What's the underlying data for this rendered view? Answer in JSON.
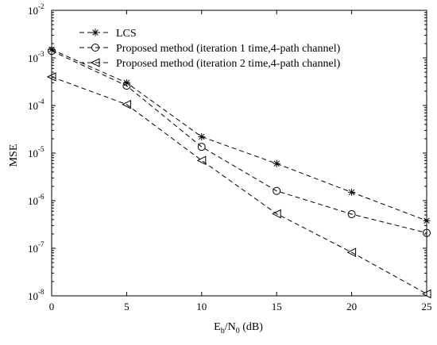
{
  "chart_data": {
    "type": "line",
    "title": "",
    "xlabel": {
      "main": "E",
      "sub1": "b",
      "mid": "/N",
      "sub2": "0",
      "unit": " (dB)"
    },
    "ylabel": "MSE",
    "x": [
      0,
      5,
      10,
      15,
      20,
      25
    ],
    "xlim": [
      0,
      25
    ],
    "ylim": [
      1e-08,
      0.01
    ],
    "yscale": "log",
    "xticks": [
      "0",
      "5",
      "10",
      "15",
      "20",
      "25"
    ],
    "yticks": [
      {
        "exp": -8,
        "base": "10",
        "power": "-8"
      },
      {
        "exp": -7,
        "base": "10",
        "power": "-7"
      },
      {
        "exp": -6,
        "base": "10",
        "power": "-6"
      },
      {
        "exp": -5,
        "base": "10",
        "power": "-5"
      },
      {
        "exp": -4,
        "base": "10",
        "power": "-4"
      },
      {
        "exp": -3,
        "base": "10",
        "power": "-3"
      },
      {
        "exp": -2,
        "base": "10",
        "power": "-2"
      }
    ],
    "grid": false,
    "legend_position": "top-right",
    "series": [
      {
        "name": "LCS",
        "marker": "asterisk",
        "linestyle": "dashed",
        "values": [
          0.0015,
          0.0003,
          2.2e-05,
          6e-06,
          1.5e-06,
          3.8e-07
        ]
      },
      {
        "name": "Proposed method (iteration 1 time,4-path channel)",
        "marker": "circle",
        "linestyle": "dashed",
        "values": [
          0.0014,
          0.00026,
          1.35e-05,
          1.6e-06,
          5.2e-07,
          2.1e-07
        ]
      },
      {
        "name": "Proposed method (iteration 2 time,4-path channel)",
        "marker": "triangle-left",
        "linestyle": "dashed",
        "values": [
          0.0004,
          0.000105,
          7e-06,
          5.3e-07,
          8.2e-08,
          1.1e-08
        ]
      }
    ],
    "colors": {
      "line": "#000000",
      "axis": "#000000",
      "background": "#ffffff"
    }
  }
}
